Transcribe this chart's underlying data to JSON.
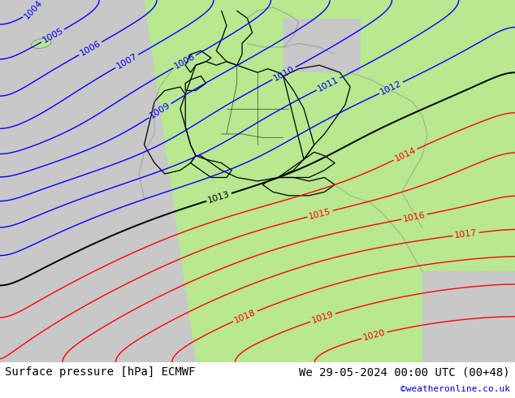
{
  "title_left": "Surface pressure [hPa] ECMWF",
  "title_right": "We 29-05-2024 00:00 UTC (00+48)",
  "copyright": "©weatheronline.co.uk",
  "copyright_color": "#0000cc",
  "bg_sea_color": "#c8c8c8",
  "bg_land_color": "#b8e890",
  "border_color": "#888888",
  "country_border_color": "#000000",
  "contour_low_color": "#0000ff",
  "contour_mid_color": "#000000",
  "contour_high_color": "#ff0000",
  "label_fontsize": 8,
  "footer_fontsize": 10,
  "pressure_levels_low": [
    1004,
    1005,
    1006,
    1007,
    1008,
    1009,
    1010,
    1011,
    1012
  ],
  "pressure_levels_mid": [
    1013
  ],
  "pressure_levels_high": [
    1014,
    1015,
    1016,
    1017,
    1018,
    1019,
    1020
  ],
  "figsize": [
    6.34,
    4.9
  ],
  "dpi": 100
}
